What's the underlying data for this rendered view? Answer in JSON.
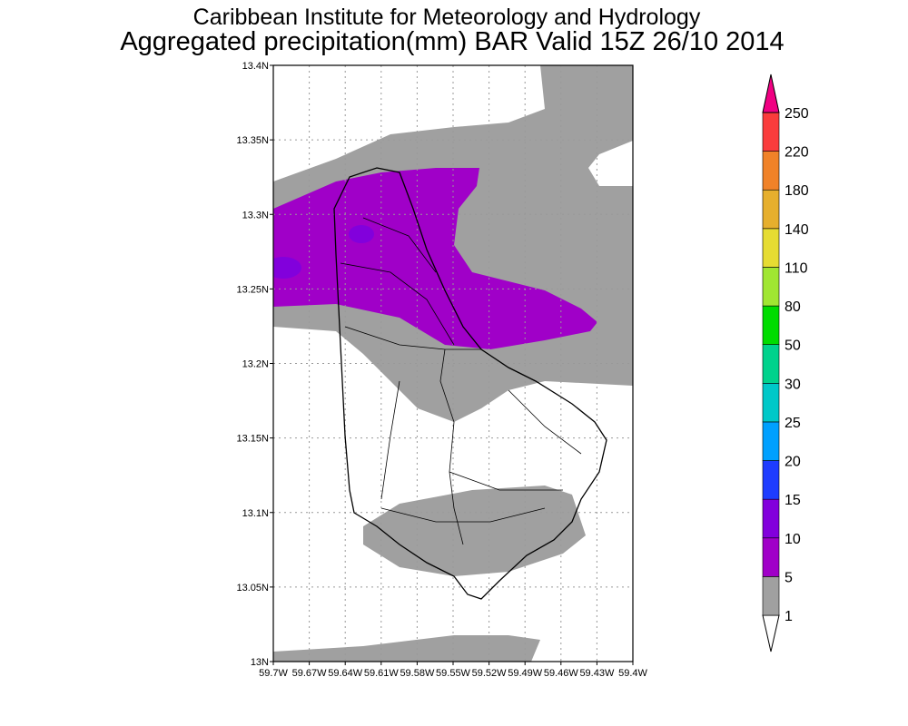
{
  "header": {
    "title": "Caribbean Institute for Meteorology and Hydrology",
    "subtitle": "Aggregated precipitation(mm) BAR Valid 15Z 26/10 2014"
  },
  "map": {
    "xlim": [
      -59.7,
      -59.4
    ],
    "ylim": [
      13.0,
      13.4
    ],
    "xticks": [
      {
        "value": -59.7,
        "label": "59.7W"
      },
      {
        "value": -59.67,
        "label": "59.67W"
      },
      {
        "value": -59.64,
        "label": "59.64W"
      },
      {
        "value": -59.61,
        "label": "59.61W"
      },
      {
        "value": -59.58,
        "label": "59.58W"
      },
      {
        "value": -59.55,
        "label": "59.55W"
      },
      {
        "value": -59.52,
        "label": "59.52W"
      },
      {
        "value": -59.49,
        "label": "59.49W"
      },
      {
        "value": -59.46,
        "label": "59.46W"
      },
      {
        "value": -59.43,
        "label": "59.43W"
      },
      {
        "value": -59.4,
        "label": "59.4W"
      }
    ],
    "yticks": [
      {
        "value": 13.0,
        "label": "13N"
      },
      {
        "value": 13.05,
        "label": "13.05N"
      },
      {
        "value": 13.1,
        "label": "13.1N"
      },
      {
        "value": 13.15,
        "label": "13.15N"
      },
      {
        "value": 13.2,
        "label": "13.2N"
      },
      {
        "value": 13.25,
        "label": "13.25N"
      },
      {
        "value": 13.3,
        "label": "13.3N"
      },
      {
        "value": 13.35,
        "label": "13.35N"
      },
      {
        "value": 13.4,
        "label": "13.4N"
      }
    ],
    "grid": true
  },
  "colorbar": {
    "levels": [
      1,
      5,
      10,
      15,
      20,
      25,
      30,
      50,
      80,
      110,
      140,
      180,
      220,
      250
    ],
    "colors": [
      "#ffffff",
      "#a0a0a0",
      "#a000c8",
      "#8200dc",
      "#1e3cff",
      "#00a0ff",
      "#00c8c8",
      "#00d28c",
      "#00dc00",
      "#a0e632",
      "#e6dc32",
      "#e6af2d",
      "#f08228",
      "#fa3c3c",
      "#f00082"
    ]
  }
}
